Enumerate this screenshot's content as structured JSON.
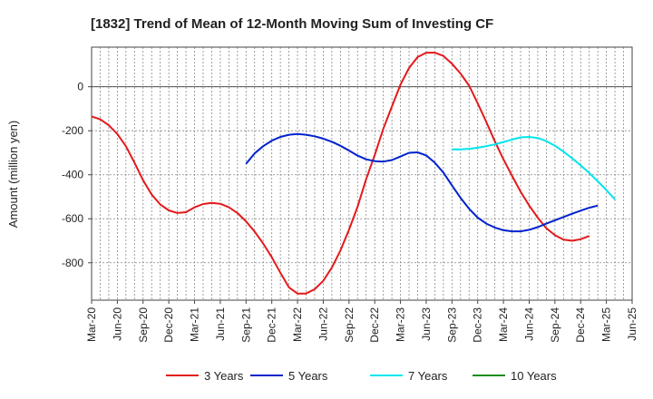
{
  "chart_data": {
    "type": "line",
    "title": "[1832]  Trend of Mean of 12-Month Moving Sum of Investing CF",
    "xlabel": "",
    "ylabel": "Amount (million yen)",
    "ylim": [
      -970,
      180
    ],
    "yticks": [
      0,
      -200,
      -400,
      -600,
      -800
    ],
    "x_tick_labels": [
      "Mar-20",
      "Jun-20",
      "Sep-20",
      "Dec-20",
      "Mar-21",
      "Jun-21",
      "Sep-21",
      "Dec-21",
      "Mar-22",
      "Jun-22",
      "Sep-22",
      "Dec-22",
      "Mar-23",
      "Jun-23",
      "Sep-23",
      "Dec-23",
      "Mar-24",
      "Jun-24",
      "Sep-24",
      "Dec-24",
      "Mar-25",
      "Jun-25"
    ],
    "grid": true,
    "legend_position": "bottom",
    "series": [
      {
        "name": "3 Years",
        "color": "#e31a1c",
        "start_index": 0,
        "values": [
          -135,
          -148,
          -175,
          -215,
          -270,
          -345,
          -425,
          -490,
          -535,
          -562,
          -574,
          -570,
          -548,
          -533,
          -528,
          -532,
          -548,
          -574,
          -612,
          -658,
          -713,
          -775,
          -845,
          -912,
          -940,
          -940,
          -920,
          -882,
          -822,
          -745,
          -650,
          -545,
          -420,
          -310,
          -190,
          -90,
          10,
          85,
          135,
          155,
          155,
          140,
          105,
          60,
          5,
          -75,
          -160,
          -248,
          -330,
          -405,
          -477,
          -540,
          -595,
          -643,
          -675,
          -695,
          -700,
          -693,
          -678
        ]
      },
      {
        "name": "5 Years",
        "color": "#0022cc",
        "start_index": 18,
        "values": [
          -350,
          -303,
          -270,
          -245,
          -228,
          -218,
          -215,
          -218,
          -225,
          -236,
          -250,
          -268,
          -290,
          -313,
          -330,
          -338,
          -340,
          -333,
          -317,
          -300,
          -298,
          -312,
          -345,
          -390,
          -448,
          -505,
          -555,
          -595,
          -622,
          -640,
          -652,
          -657,
          -657,
          -650,
          -638,
          -622,
          -607,
          -592,
          -577,
          -563,
          -550,
          -540
        ]
      },
      {
        "name": "7 Years",
        "color": "#00e5ee",
        "start_index": 42,
        "values": [
          -285,
          -285,
          -282,
          -277,
          -270,
          -262,
          -251,
          -240,
          -230,
          -228,
          -233,
          -247,
          -268,
          -295,
          -325,
          -357,
          -392,
          -430,
          -470,
          -512
        ]
      },
      {
        "name": "10 Years",
        "color": "#1e8c1e",
        "start_index": 0,
        "values": []
      }
    ]
  }
}
